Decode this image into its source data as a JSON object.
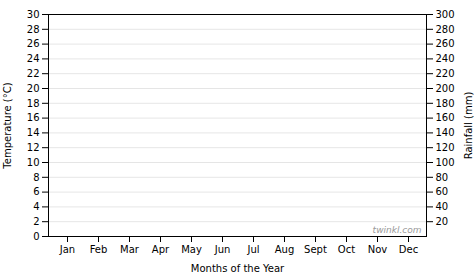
{
  "chart_data": {
    "type": "line",
    "xlabel": "Months of the Year",
    "ylabel": "Temperature (°C)",
    "y2label": "Rainfall (mm)",
    "categories": [
      "Jan",
      "Feb",
      "Mar",
      "Apr",
      "May",
      "Jun",
      "Jul",
      "Aug",
      "Sept",
      "Oct",
      "Nov",
      "Dec"
    ],
    "series": [],
    "ylim": [
      0,
      30
    ],
    "yticks": [
      0,
      2,
      4,
      6,
      8,
      10,
      12,
      14,
      16,
      18,
      20,
      22,
      24,
      26,
      28,
      30
    ],
    "y2lim": [
      0,
      300
    ],
    "y2ticks": [
      20,
      40,
      60,
      80,
      100,
      120,
      140,
      160,
      180,
      200,
      220,
      240,
      260,
      280,
      300
    ],
    "grid": true,
    "annotations": [
      {
        "text": "twinkl.com"
      }
    ]
  }
}
